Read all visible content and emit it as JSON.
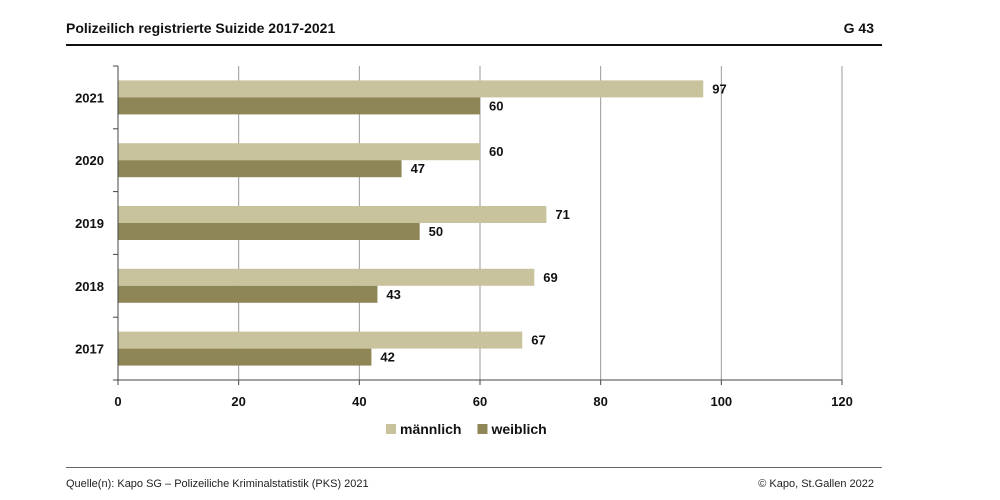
{
  "header": {
    "title": "Polizeilich registrierte Suizide 2017-2021",
    "code": "G 43"
  },
  "footer": {
    "source": "Quelle(n): Kapo SG – Polizeiliche Kriminalstatistik (PKS) 2021",
    "copyright": "© Kapo, St.Gallen 2022"
  },
  "chart_data": {
    "type": "bar",
    "orientation": "horizontal",
    "categories": [
      "2021",
      "2020",
      "2019",
      "2018",
      "2017"
    ],
    "series": [
      {
        "name": "männlich",
        "values": [
          97,
          60,
          71,
          69,
          67
        ],
        "color": "#c8c39c"
      },
      {
        "name": "weiblich",
        "values": [
          60,
          47,
          50,
          43,
          42
        ],
        "color": "#8f8658"
      }
    ],
    "xlim": [
      0,
      120
    ],
    "xticks": [
      "0",
      "20",
      "40",
      "60",
      "80",
      "100",
      "120"
    ],
    "grid": true,
    "legend_position": "bottom",
    "data_labels": true
  }
}
